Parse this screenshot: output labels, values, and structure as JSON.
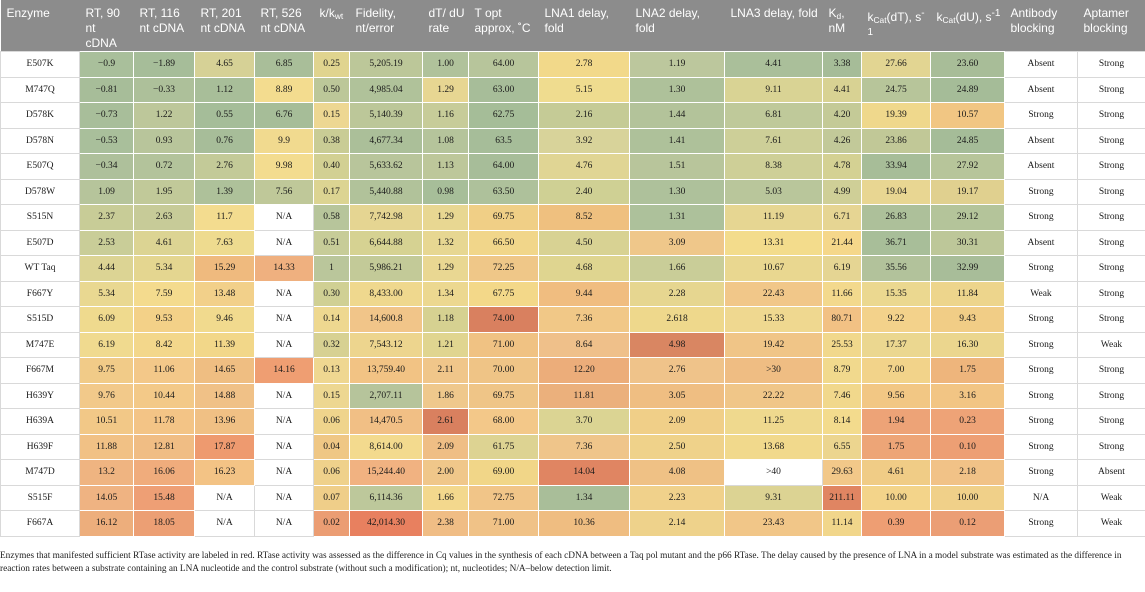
{
  "headers": [
    "Enzyme",
    "RT, 90 nt cDNA",
    "RT, 116 nt cDNA",
    "RT, 201 nt cDNA",
    "RT, 526 nt cDNA",
    "k/kwt",
    "Fidelity, nt/error",
    "dT/dU rate",
    "T opt approx, °C",
    "LNA1 delay, fold",
    "LNA2 delay, fold",
    "LNA3 delay, fold",
    "Kd, nM",
    "kCat(dT), s-1",
    "kCat(dU), s-1",
    "Antibody blocking",
    "Aptamer blocking"
  ],
  "header_parts": [
    {
      "a": "Enzyme"
    },
    {
      "a": "RT, 90 nt cDNA"
    },
    {
      "a": "RT, 116 nt cDNA"
    },
    {
      "a": "RT, 201 nt cDNA"
    },
    {
      "a": "RT, 526 nt cDNA"
    },
    {
      "a": "k/",
      "b": "k",
      "c": "wt"
    },
    {
      "a": "Fidelity, nt/error"
    },
    {
      "a": "dT/ dU rate"
    },
    {
      "a": "T opt approx, ˚C"
    },
    {
      "a": "LNA1 delay, fold"
    },
    {
      "a": "LNA2 delay, fold"
    },
    {
      "a": "LNA3 delay, fold"
    },
    {
      "a": "K",
      "s": "d",
      "b": ", nM"
    },
    {
      "a": "k",
      "s": "Cat",
      "b": "(dT), s",
      "p": "-1"
    },
    {
      "a": "k",
      "s": "Cat",
      "b": "(dU), s",
      "p": "-1"
    },
    {
      "a": "Antibody blocking"
    },
    {
      "a": "Aptamer blocking"
    }
  ],
  "rows": [
    [
      "E507K",
      "−0.9",
      "−1.89",
      "4.65",
      "6.85",
      "0.25",
      "5,205.19",
      "1.00",
      "64.00",
      "2.78",
      "1.19",
      "4.41",
      "3.38",
      "27.66",
      "23.60",
      "Absent",
      "Strong"
    ],
    [
      "M747Q",
      "−0.81",
      "−0.33",
      "1.12",
      "8.89",
      "0.50",
      "4,985.04",
      "1.29",
      "63.00",
      "5.15",
      "1.30",
      "9.11",
      "4.41",
      "24.75",
      "24.89",
      "Absent",
      "Strong"
    ],
    [
      "D578K",
      "−0.73",
      "1.22",
      "0.55",
      "6.76",
      "0.15",
      "5,140.39",
      "1.16",
      "62.75",
      "2.16",
      "1.44",
      "6.81",
      "4.20",
      "19.39",
      "10.57",
      "Strong",
      "Strong"
    ],
    [
      "D578N",
      "−0.53",
      "0.93",
      "0.76",
      "9.9",
      "0.38",
      "4,677.34",
      "1.08",
      "63.5",
      "3.92",
      "1.41",
      "7.61",
      "4.26",
      "23.86",
      "24.85",
      "Absent",
      "Strong"
    ],
    [
      "E507Q",
      "−0.34",
      "0.72",
      "2.76",
      "9.98",
      "0.40",
      "5,633.62",
      "1.13",
      "64.00",
      "4.76",
      "1.51",
      "8.38",
      "4.78",
      "33.94",
      "27.92",
      "Absent",
      "Strong"
    ],
    [
      "D578W",
      "1.09",
      "1.95",
      "1.39",
      "7.56",
      "0.17",
      "5,440.88",
      "0.98",
      "63.50",
      "2.40",
      "1.30",
      "5.03",
      "4.99",
      "19.04",
      "19.17",
      "Strong",
      "Strong"
    ],
    [
      "S515N",
      "2.37",
      "2.63",
      "11.7",
      "N/A",
      "0.58",
      "7,742.98",
      "1.29",
      "69.75",
      "8.52",
      "1.31",
      "11.19",
      "6.71",
      "26.83",
      "29.12",
      "Strong",
      "Strong"
    ],
    [
      "E507D",
      "2.53",
      "4.61",
      "7.63",
      "N/A",
      "0.51",
      "6,644.88",
      "1.32",
      "66.50",
      "4.50",
      "3.09",
      "13.31",
      "21.44",
      "36.71",
      "30.31",
      "Absent",
      "Strong"
    ],
    [
      "WT Taq",
      "4.44",
      "5.34",
      "15.29",
      "14.33",
      "1",
      "5,986.21",
      "1.29",
      "72.25",
      "4.68",
      "1.66",
      "10.67",
      "6.19",
      "35.56",
      "32.99",
      "Strong",
      "Strong"
    ],
    [
      "F667Y",
      "5.34",
      "7.59",
      "13.48",
      "N/A",
      "0.30",
      "8,433.00",
      "1.34",
      "67.75",
      "9.44",
      "2.28",
      "22.43",
      "11.66",
      "15.35",
      "11.84",
      "Weak",
      "Strong"
    ],
    [
      "S515D",
      "6.09",
      "9.53",
      "9.46",
      "N/A",
      "0.14",
      "14,600.8",
      "1.18",
      "74.00",
      "7.36",
      "2.618",
      "15.33",
      "80.71",
      "9.22",
      "9.43",
      "Strong",
      "Strong"
    ],
    [
      "M747E",
      "6.19",
      "8.42",
      "11.39",
      "N/A",
      "0.32",
      "7,543.12",
      "1.21",
      "71.00",
      "8.64",
      "4.98",
      "19.42",
      "25.53",
      "17.37",
      "16.30",
      "Strong",
      "Weak"
    ],
    [
      "F667M",
      "9.75",
      "11.06",
      "14.65",
      "14.16",
      "0.13",
      "13,759.40",
      "2.11",
      "70.00",
      "12.20",
      "2.76",
      ">30",
      "8.79",
      "7.00",
      "1.75",
      "Strong",
      "Strong"
    ],
    [
      "H639Y",
      "9.76",
      "10.44",
      "14.88",
      "N/A",
      "0.15",
      "2,707.11",
      "1.86",
      "69.75",
      "11.81",
      "3.05",
      "22.22",
      "7.46",
      "9.56",
      "3.16",
      "Strong",
      "Strong"
    ],
    [
      "H639A",
      "10.51",
      "11.78",
      "13.96",
      "N/A",
      "0.06",
      "14,470.5",
      "2.61",
      "68.00",
      "3.70",
      "2.09",
      "11.25",
      "8.14",
      "1.94",
      "0.23",
      "Strong",
      "Strong"
    ],
    [
      "H639F",
      "11.88",
      "12.81",
      "17.87",
      "N/A",
      "0.04",
      "8,614.00",
      "2.09",
      "61.75",
      "7.36",
      "2.50",
      "13.68",
      "6.55",
      "1.75",
      "0.10",
      "Strong",
      "Strong"
    ],
    [
      "M747D",
      "13.2",
      "16.06",
      "16.23",
      "N/A",
      "0.06",
      "15,244.40",
      "2.00",
      "69.00",
      "14.04",
      "4.08",
      ">40",
      "29.63",
      "4.61",
      "2.18",
      "Strong",
      "Absent"
    ],
    [
      "S515F",
      "14.05",
      "15.48",
      "N/A",
      "N/A",
      "0.07",
      "6,114.36",
      "1.66",
      "72.75",
      "1.34",
      "2.23",
      "9.31",
      "211.11",
      "10.00",
      "10.00",
      "N/A",
      "Weak"
    ],
    [
      "F667A",
      "16.12",
      "18.05",
      "N/A",
      "N/A",
      "0.02",
      "42,014.30",
      "2.38",
      "71.00",
      "10.36",
      "2.14",
      "23.43",
      "11.14",
      "0.39",
      "0.12",
      "Strong",
      "Weak"
    ]
  ],
  "cell_colors": [
    [
      "#ffffff",
      "#a9bf9b",
      "#a6bd99",
      "#d6d196",
      "#a9be99",
      "#e0d48f",
      "#bcc799",
      "#b0c29b",
      "#b7c59b",
      "#f2d98a",
      "#bcc79d",
      "#aabf9a",
      "#a6bc98",
      "#e2d592",
      "#a8bd98",
      "#ffffff",
      "#ffffff"
    ],
    [
      "#ffffff",
      "#a7bd99",
      "#adc09a",
      "#a8be99",
      "#f3dc8f",
      "#bcc799",
      "#b0c29a",
      "#e7d692",
      "#a7bd99",
      "#efdc8f",
      "#aec19a",
      "#d9d394",
      "#d8d293",
      "#b7c59a",
      "#a5bc98",
      "#ffffff",
      "#ffffff"
    ],
    [
      "#ffffff",
      "#a8be9a",
      "#bdc79a",
      "#a5bd99",
      "#a6bd98",
      "#edd792",
      "#bcc799",
      "#c7cc99",
      "#a5bd98",
      "#c5cb96",
      "#b3c39a",
      "#bfc99a",
      "#c4ca97",
      "#efd88c",
      "#f1c683",
      "#ffffff",
      "#ffffff"
    ],
    [
      "#ffffff",
      "#a9bf9b",
      "#b8c59b",
      "#a7bd99",
      "#f1da8f",
      "#c9cc95",
      "#abbf99",
      "#b5c49b",
      "#a6bd99",
      "#d8d39a",
      "#aec19a",
      "#cdcf98",
      "#c2c999",
      "#c1c897",
      "#a5bc98",
      "#ffffff",
      "#ffffff"
    ],
    [
      "#ffffff",
      "#aec09b",
      "#b3c39b",
      "#c3ca98",
      "#f3dc8f",
      "#d2d093",
      "#b8c59b",
      "#bdc79a",
      "#a7bd99",
      "#e0d594",
      "#b8c59b",
      "#cecf97",
      "#d4d193",
      "#a7bd98",
      "#b7c59a",
      "#ffffff",
      "#ffffff"
    ],
    [
      "#ffffff",
      "#b6c49b",
      "#c1c999",
      "#aec19a",
      "#bfc899",
      "#dcd492",
      "#b1c29a",
      "#a7be99",
      "#aec19b",
      "#cfd094",
      "#aec19b",
      "#b9c69b",
      "#cfcf97",
      "#e8d692",
      "#e0d08f",
      "#ffffff",
      "#ffffff"
    ],
    [
      "#ffffff",
      "#c8cc97",
      "#c7cb98",
      "#f3dc8f",
      "#ffffff",
      "#b7c59b",
      "#e5d592",
      "#e8d792",
      "#f0cf86",
      "#efc07f",
      "#adc19b",
      "#e6d692",
      "#e6d593",
      "#adc09a",
      "#b4c49a",
      "#ffffff",
      "#ffffff"
    ],
    [
      "#ffffff",
      "#c9cd98",
      "#dcd493",
      "#eedb8f",
      "#ffffff",
      "#c7cc98",
      "#d6d292",
      "#e7d792",
      "#f1d68a",
      "#d8d293",
      "#efc78a",
      "#f3dc8c",
      "#f5d78a",
      "#a8be99",
      "#bdc799",
      "#ffffff",
      "#ffffff"
    ],
    [
      "#ffffff",
      "#dcd494",
      "#e4d690",
      "#efba7e",
      "#efb07f",
      "#bac69b",
      "#c3ca98",
      "#e9d792",
      "#efc788",
      "#dfd590",
      "#c9cd98",
      "#e9d790",
      "#e5d593",
      "#b2c29b",
      "#a8bd99",
      "#ffffff",
      "#ffffff"
    ],
    [
      "#ffffff",
      "#e9d891",
      "#f4db8e",
      "#f2d08a",
      "#ffffff",
      "#d0d094",
      "#efd88e",
      "#ecd890",
      "#f3d889",
      "#f0bd80",
      "#e6d690",
      "#f1c789",
      "#f3d98d",
      "#ebd890",
      "#edd58c",
      "#ffffff",
      "#ffffff"
    ],
    [
      "#ffffff",
      "#efda8e",
      "#f3d188",
      "#f1da8e",
      "#ffffff",
      "#eed890",
      "#f1c589",
      "#d6d191",
      "#d9805f",
      "#f1c887",
      "#eed88c",
      "#efd890",
      "#f2c184",
      "#f3d28b",
      "#f1cd86",
      "#ffffff",
      "#ffffff"
    ],
    [
      "#ffffff",
      "#f0da8f",
      "#f3d78b",
      "#f2d789",
      "#ffffff",
      "#d7d192",
      "#edd58e",
      "#e0d590",
      "#f0c283",
      "#efc08a",
      "#d98662",
      "#f0c587",
      "#f1d88c",
      "#ebd790",
      "#ebd68e",
      "#ffffff",
      "#ffffff"
    ],
    [
      "#ffffff",
      "#f1cb88",
      "#f3c889",
      "#efbe82",
      "#ef9e72",
      "#efd791",
      "#f2c384",
      "#f0c68a",
      "#efc486",
      "#ecad7a",
      "#efc38a",
      "#efbd83",
      "#f1d98d",
      "#f2d38a",
      "#eeb57c",
      "#ffffff",
      "#ffffff"
    ],
    [
      "#ffffff",
      "#f2c98a",
      "#f3c988",
      "#f0c187",
      "#ffffff",
      "#edd791",
      "#b6c49b",
      "#efc88c",
      "#efc587",
      "#ebb07c",
      "#efbe82",
      "#f0c688",
      "#f1d88c",
      "#f2c784",
      "#f2c584",
      "#ffffff",
      "#ffffff"
    ],
    [
      "#ffffff",
      "#f2c887",
      "#f3c486",
      "#f0c084",
      "#ffffff",
      "#efd48c",
      "#f1bf85",
      "#d9805f",
      "#f3c889",
      "#dbd493",
      "#f0cf88",
      "#efd98e",
      "#f3db8d",
      "#eda377",
      "#eea377",
      "#ffffff",
      "#ffffff"
    ],
    [
      "#ffffff",
      "#f1c185",
      "#f0bd84",
      "#ee9a6f",
      "#ffffff",
      "#efc785",
      "#f3da8e",
      "#efbe85",
      "#ddd392",
      "#efc58a",
      "#efd28a",
      "#f1d98c",
      "#ecd58f",
      "#eda577",
      "#ed9f74",
      "#ffffff",
      "#ffffff"
    ],
    [
      "#ffffff",
      "#efb481",
      "#f0ac7c",
      "#f3c385",
      "#ffffff",
      "#efd18b",
      "#f1b281",
      "#f0c78a",
      "#f1d688",
      "#e08562",
      "#efc185",
      "#ffffff",
      "#f2c889",
      "#f0cc86",
      "#f1c287",
      "#ffffff",
      "#ffffff"
    ],
    [
      "#ffffff",
      "#efb382",
      "#ee9f75",
      "#ffffff",
      "#ffffff",
      "#efce89",
      "#bdc89b",
      "#f3d88d",
      "#f1c588",
      "#a9be99",
      "#f0d18b",
      "#dcd393",
      "#e08562",
      "#f3d48a",
      "#f0d089",
      "#ffffff",
      "#ffffff"
    ],
    [
      "#ffffff",
      "#edae7c",
      "#ec9f74",
      "#ffffff",
      "#ffffff",
      "#eb9d73",
      "#e8805f",
      "#f0bd85",
      "#f0c287",
      "#efbd81",
      "#eed28b",
      "#f1c688",
      "#f1d68b",
      "#ee9e73",
      "#eb9e75",
      "#ffffff",
      "#ffffff"
    ]
  ],
  "caption": "Enzymes that manifested sufficient RTase activity are labeled in red. RTase activity was assessed as the difference in Cq values in the synthesis of each cDNA between a Taq pol mutant and the p66 RTase. The delay caused by the presence of LNA in a model substrate was estimated as the difference in reaction rates between a substrate containing an LNA nucleotide and the control substrate (without such a modification); nt, nucleotides; N/A–below detection limit."
}
